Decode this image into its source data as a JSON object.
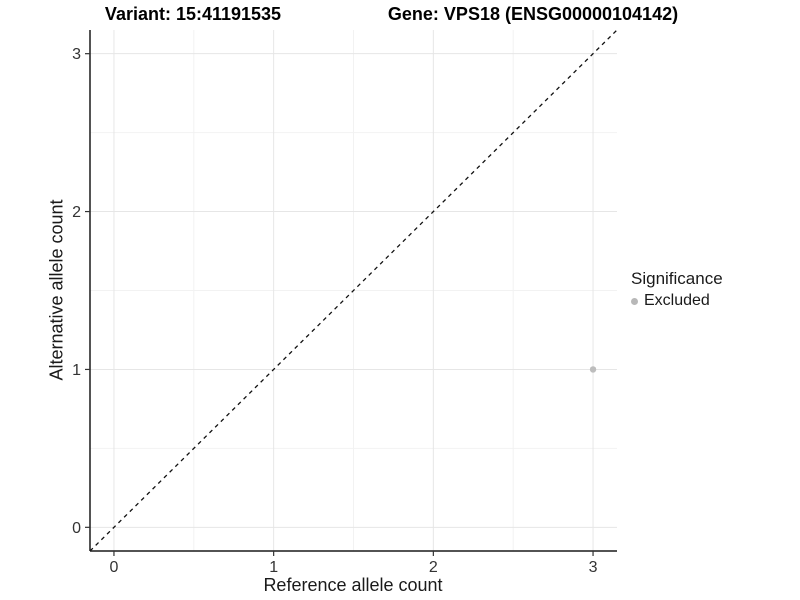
{
  "titles": {
    "variant": "Variant: 15:41191535",
    "gene": "Gene: VPS18 (ENSG00000104142)"
  },
  "chart_data": {
    "type": "scatter",
    "title_left": "Variant: 15:41191535",
    "title_right": "Gene: VPS18 (ENSG00000104142)",
    "xlabel": "Reference allele count",
    "ylabel": "Alternative allele count",
    "xlim": [
      -0.15,
      3.15
    ],
    "ylim": [
      -0.15,
      3.15
    ],
    "x_ticks": [
      0,
      1,
      2,
      3
    ],
    "y_ticks": [
      0,
      1,
      2,
      3
    ],
    "grid": "major and minor gridlines on white panel",
    "reference_line": {
      "type": "identity y=x",
      "style": "dashed",
      "color": "#111111"
    },
    "points": [
      {
        "x": 3,
        "y": 1,
        "significance": "Excluded"
      }
    ],
    "legend": {
      "title": "Significance",
      "position": "right",
      "items": [
        {
          "label": "Excluded",
          "color": "#b8b8b8"
        }
      ]
    }
  },
  "colors": {
    "grid_major": "#e6e6e6",
    "grid_minor": "#f2f2f2",
    "axis_line": "#1a1a1a",
    "tick_mark": "#333333",
    "tick_label": "#333333",
    "point": "#bdbdbd"
  }
}
